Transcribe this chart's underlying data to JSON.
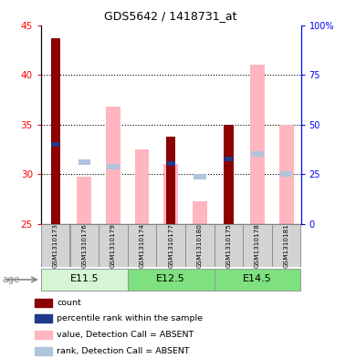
{
  "title": "GDS5642 / 1418731_at",
  "samples": [
    "GSM1310173",
    "GSM1310176",
    "GSM1310179",
    "GSM1310174",
    "GSM1310177",
    "GSM1310180",
    "GSM1310175",
    "GSM1310178",
    "GSM1310181"
  ],
  "count_values": [
    43.7,
    null,
    null,
    null,
    33.8,
    null,
    35.0,
    null,
    null
  ],
  "percentile_values": [
    33.0,
    null,
    null,
    null,
    31.1,
    null,
    31.5,
    null,
    null
  ],
  "absent_value_values": [
    null,
    29.7,
    36.8,
    32.5,
    31.0,
    27.3,
    null,
    41.0,
    35.0
  ],
  "absent_rank_values": [
    null,
    31.2,
    30.7,
    null,
    null,
    29.7,
    null,
    32.0,
    30.0
  ],
  "ylim": [
    25,
    45
  ],
  "yticks_left": [
    25,
    30,
    35,
    40,
    45
  ],
  "yticks_right": [
    0,
    25,
    50,
    75,
    100
  ],
  "count_color": "#8B0000",
  "percentile_color": "#1E3A8A",
  "absent_value_color": "#FFB6C1",
  "absent_rank_color": "#B0C4DE",
  "group_configs": [
    {
      "indices": [
        0,
        1,
        2
      ],
      "label": "E11.5",
      "color": "#D5F5D5"
    },
    {
      "indices": [
        3,
        4,
        5
      ],
      "label": "E12.5",
      "color": "#7EE07E"
    },
    {
      "indices": [
        6,
        7,
        8
      ],
      "label": "E14.5",
      "color": "#7EE07E"
    }
  ],
  "legend_items": [
    {
      "label": "count",
      "color": "#8B0000"
    },
    {
      "label": "percentile rank within the sample",
      "color": "#1E3A8A"
    },
    {
      "label": "value, Detection Call = ABSENT",
      "color": "#FFB6C1"
    },
    {
      "label": "rank, Detection Call = ABSENT",
      "color": "#B0C4DE"
    }
  ]
}
